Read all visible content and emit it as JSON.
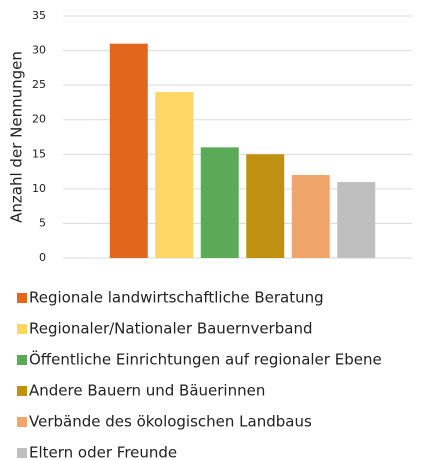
{
  "chart_data": {
    "type": "bar",
    "y_label": "Anzahl der Nennungen",
    "categories": [
      "Regionale landwirtschaftliche  Beratung",
      "Regionaler/Nationaler  Bauernverband",
      "Öffentliche Einrichtungen auf regionaler Ebene",
      "Andere Bauern und Bäuerinnen",
      "Verbände des ökologischen Landbaus",
      "Eltern oder Freunde"
    ],
    "values": [
      31,
      24,
      16,
      15,
      12,
      11
    ],
    "colors": [
      "#E2661B",
      "#FDD663",
      "#5BAA57",
      "#C09111",
      "#F0A56B",
      "#BFBFBF"
    ],
    "ylim": [
      0,
      35
    ],
    "yticks": [
      0,
      5,
      10,
      15,
      20,
      25,
      30,
      35
    ],
    "grid": true
  }
}
